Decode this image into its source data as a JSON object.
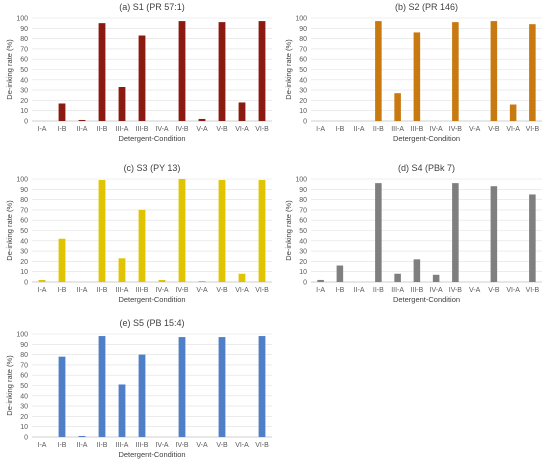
{
  "chart_data": [
    {
      "type": "bar",
      "title": "(a) S1 (PR 57:1)",
      "xlabel": "Detergent-Condition",
      "ylabel": "De-inking rate (%)",
      "ylim": [
        0,
        100
      ],
      "yticks": [
        0,
        10,
        20,
        30,
        40,
        50,
        60,
        70,
        80,
        90,
        100
      ],
      "color": "#8b1a10",
      "categories": [
        "I-A",
        "I-B",
        "II-A",
        "II-B",
        "III-A",
        "III-B",
        "IV-A",
        "IV-B",
        "V-A",
        "V-B",
        "VI-A",
        "VI-B"
      ],
      "values": [
        0,
        17,
        1,
        95,
        33,
        83,
        0,
        97,
        2,
        96,
        18,
        97
      ]
    },
    {
      "type": "bar",
      "title": "(b) S2 (PR 146)",
      "xlabel": "Detergent-Condition",
      "ylabel": "De-inking rate (%)",
      "ylim": [
        0,
        100
      ],
      "yticks": [
        0,
        10,
        20,
        30,
        40,
        50,
        60,
        70,
        80,
        90,
        100
      ],
      "color": "#c87a10",
      "categories": [
        "I-A",
        "I-B",
        "II-A",
        "II-B",
        "III-A",
        "III-B",
        "IV-A",
        "IV-B",
        "V-A",
        "V-B",
        "VI-A",
        "VI-B"
      ],
      "values": [
        0,
        0,
        0,
        97,
        27,
        86,
        0,
        96,
        0,
        97,
        16,
        94
      ]
    },
    {
      "type": "bar",
      "title": "(c) S3 (PY 13)",
      "xlabel": "Detergent-Condition",
      "ylabel": "De-inking rate (%)",
      "ylim": [
        0,
        100
      ],
      "yticks": [
        0,
        10,
        20,
        30,
        40,
        50,
        60,
        70,
        80,
        90,
        100
      ],
      "color": "#e0c400",
      "categories": [
        "I-A",
        "I-B",
        "II-A",
        "II-B",
        "III-A",
        "III-B",
        "IV-A",
        "IV-B",
        "V-A",
        "V-B",
        "VI-A",
        "VI-B"
      ],
      "values": [
        2,
        42,
        0,
        99,
        23,
        70,
        2,
        100,
        1,
        99,
        8,
        99
      ]
    },
    {
      "type": "bar",
      "title": "(d) S4 (PBk 7)",
      "xlabel": "Detergent-Condition",
      "ylabel": "De-inking rate (%)",
      "ylim": [
        0,
        100
      ],
      "yticks": [
        0,
        10,
        20,
        30,
        40,
        50,
        60,
        70,
        80,
        90,
        100
      ],
      "color": "#7f7f7f",
      "categories": [
        "I-A",
        "I-B",
        "II-A",
        "II-B",
        "III-A",
        "III-B",
        "IV-A",
        "IV-B",
        "V-A",
        "V-B",
        "VI-A",
        "VI-B"
      ],
      "values": [
        2,
        16,
        0,
        96,
        8,
        22,
        7,
        96,
        0,
        93,
        0,
        85
      ]
    },
    {
      "type": "bar",
      "title": "(e) S5 (PB 15:4)",
      "xlabel": "Detergent-Condition",
      "ylabel": "De-inking rate (%)",
      "ylim": [
        0,
        100
      ],
      "yticks": [
        0,
        10,
        20,
        30,
        40,
        50,
        60,
        70,
        80,
        90,
        100
      ],
      "color": "#4f7fc8",
      "categories": [
        "I-A",
        "I-B",
        "II-A",
        "II-B",
        "III-A",
        "III-B",
        "IV-A",
        "IV-B",
        "V-A",
        "V-B",
        "VI-A",
        "VI-B"
      ],
      "values": [
        0,
        78,
        1,
        98,
        51,
        80,
        0,
        97,
        0,
        97,
        0,
        98
      ]
    }
  ]
}
